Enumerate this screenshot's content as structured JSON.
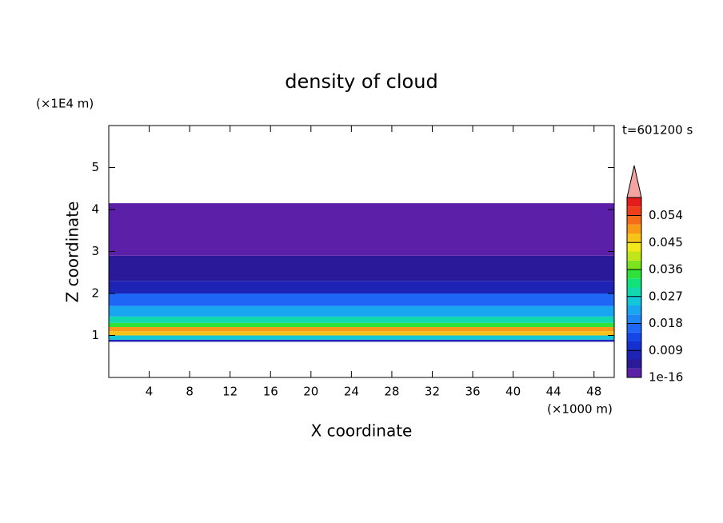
{
  "chart_data": {
    "type": "contour-profile",
    "title": "density of cloud",
    "x_label": "X coordinate",
    "y_label": "Z coordinate",
    "x_unit": "(×1000 m)",
    "y_unit": "(×1E4 m)",
    "time_label": "t=601200 s",
    "xlim": [
      0,
      50
    ],
    "xticks": [
      4,
      8,
      12,
      16,
      20,
      24,
      28,
      32,
      36,
      40,
      44,
      48
    ],
    "ylim": [
      0,
      6
    ],
    "yticks": [
      1,
      2,
      3,
      4,
      5
    ],
    "z_edges": [
      0.85,
      0.9,
      1.0,
      1.1,
      1.2,
      1.3,
      1.45,
      1.7,
      2.0,
      2.3,
      2.9,
      4.15
    ],
    "values": [
      0.006,
      0.024,
      0.045,
      0.05,
      0.036,
      0.027,
      0.021,
      0.015,
      0.009,
      0.003,
      0.001
    ],
    "colorbar": {
      "lim": [
        0,
        0.06
      ],
      "step": 0.003,
      "ticks": [
        1e-16,
        0.009,
        0.018,
        0.027,
        0.036,
        0.045,
        0.054
      ],
      "colors": [
        "#5b1fa8",
        "#2a1a9a",
        "#1d23b4",
        "#1530cf",
        "#1547e8",
        "#1e66f5",
        "#1f86f5",
        "#18a6f0",
        "#13c6d8",
        "#10d9b0",
        "#12e27a",
        "#2ee23a",
        "#7ce41e",
        "#c0e61a",
        "#f2e81c",
        "#f8c41a",
        "#f89a18",
        "#f46c18",
        "#ef3e1c",
        "#e51c1c"
      ]
    }
  }
}
